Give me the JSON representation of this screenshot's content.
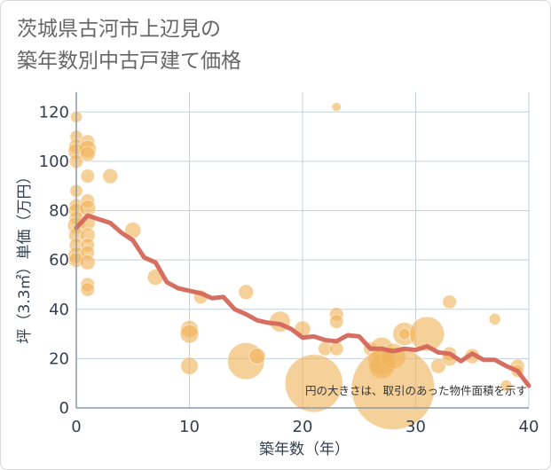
{
  "chart_data": {
    "type": "scatter",
    "title": "茨城県古河市上辺見の\n築年数別中古戸建て価格",
    "xlabel": "築年数（年）",
    "ylabel": "坪（3.3㎡）単価（万円）",
    "xlim": [
      0,
      40
    ],
    "ylim": [
      0,
      128
    ],
    "xticks": [
      "0",
      "10",
      "20",
      "30",
      "40"
    ],
    "yticks": [
      "0",
      "20",
      "40",
      "60",
      "80",
      "100",
      "120"
    ],
    "grid": true,
    "note": "円の大きさは、取引のあった物件面積を示す",
    "colors": {
      "bubble": "#f0b35a",
      "line": "#d4665a",
      "grid": "#c5d0dc",
      "axis": "#8899aa"
    },
    "points": [
      {
        "x": 0,
        "y": 118,
        "s": 1
      },
      {
        "x": 0,
        "y": 110,
        "s": 1.1
      },
      {
        "x": 0,
        "y": 106,
        "s": 1.3
      },
      {
        "x": 0,
        "y": 104,
        "s": 1.4
      },
      {
        "x": 0,
        "y": 100,
        "s": 1.2
      },
      {
        "x": 0,
        "y": 88,
        "s": 1.1
      },
      {
        "x": 0,
        "y": 82,
        "s": 1.2
      },
      {
        "x": 0,
        "y": 80,
        "s": 1.3
      },
      {
        "x": 0,
        "y": 77,
        "s": 1.2
      },
      {
        "x": 0,
        "y": 74,
        "s": 1.5
      },
      {
        "x": 0,
        "y": 70,
        "s": 1.3
      },
      {
        "x": 0,
        "y": 66,
        "s": 1.2
      },
      {
        "x": 0,
        "y": 62,
        "s": 1.4
      },
      {
        "x": 0,
        "y": 60,
        "s": 1.3
      },
      {
        "x": 1,
        "y": 108,
        "s": 1.2
      },
      {
        "x": 1,
        "y": 105,
        "s": 1.5
      },
      {
        "x": 1,
        "y": 103,
        "s": 1.3
      },
      {
        "x": 1,
        "y": 94,
        "s": 1.2
      },
      {
        "x": 1,
        "y": 84,
        "s": 1.2
      },
      {
        "x": 1,
        "y": 81,
        "s": 1.4
      },
      {
        "x": 1,
        "y": 75,
        "s": 1.3
      },
      {
        "x": 1,
        "y": 70,
        "s": 1.3
      },
      {
        "x": 1,
        "y": 66,
        "s": 1.2
      },
      {
        "x": 1,
        "y": 63,
        "s": 1.2
      },
      {
        "x": 1,
        "y": 59,
        "s": 1.3
      },
      {
        "x": 1,
        "y": 50,
        "s": 1.2
      },
      {
        "x": 1,
        "y": 48,
        "s": 1.2
      },
      {
        "x": 3,
        "y": 94,
        "s": 1.3
      },
      {
        "x": 5,
        "y": 72,
        "s": 1.4
      },
      {
        "x": 7,
        "y": 53,
        "s": 1.4
      },
      {
        "x": 10,
        "y": 32,
        "s": 1.5
      },
      {
        "x": 10,
        "y": 30,
        "s": 1.6
      },
      {
        "x": 10,
        "y": 17,
        "s": 1.5
      },
      {
        "x": 11,
        "y": 45,
        "s": 1.2
      },
      {
        "x": 15,
        "y": 47,
        "s": 1.3
      },
      {
        "x": 15,
        "y": 19,
        "s": 3.2
      },
      {
        "x": 16,
        "y": 21,
        "s": 1.4
      },
      {
        "x": 18,
        "y": 35,
        "s": 1.8
      },
      {
        "x": 20,
        "y": 32,
        "s": 1.4
      },
      {
        "x": 21,
        "y": 10,
        "s": 5.0
      },
      {
        "x": 23,
        "y": 122,
        "s": 0.8
      },
      {
        "x": 23,
        "y": 38,
        "s": 1.2
      },
      {
        "x": 23,
        "y": 35,
        "s": 1.2
      },
      {
        "x": 22,
        "y": 24,
        "s": 1.2
      },
      {
        "x": 23,
        "y": 24,
        "s": 1.2
      },
      {
        "x": 26,
        "y": 24,
        "s": 1.2
      },
      {
        "x": 27,
        "y": 24,
        "s": 2.0
      },
      {
        "x": 27,
        "y": 19,
        "s": 2.4
      },
      {
        "x": 27,
        "y": 17,
        "s": 2.2
      },
      {
        "x": 28,
        "y": 21,
        "s": 2.2
      },
      {
        "x": 28,
        "y": 8,
        "s": 7.2
      },
      {
        "x": 29,
        "y": 30,
        "s": 2.0
      },
      {
        "x": 29,
        "y": 30,
        "s": 1.0
      },
      {
        "x": 31,
        "y": 30,
        "s": 3.0
      },
      {
        "x": 32,
        "y": 17,
        "s": 1.3
      },
      {
        "x": 33,
        "y": 43,
        "s": 1.2
      },
      {
        "x": 33,
        "y": 22,
        "s": 1.2
      },
      {
        "x": 33,
        "y": 20,
        "s": 1.3
      },
      {
        "x": 35,
        "y": 21,
        "s": 1.3
      },
      {
        "x": 37,
        "y": 36,
        "s": 1.0
      },
      {
        "x": 38,
        "y": 9,
        "s": 1.0
      },
      {
        "x": 39,
        "y": 17,
        "s": 1.2
      },
      {
        "x": 39,
        "y": 15,
        "s": 1.1
      }
    ],
    "trend": {
      "x": [
        0,
        1,
        2,
        3,
        4,
        5,
        6,
        7,
        8,
        9,
        10,
        11,
        12,
        13,
        14,
        15,
        16,
        17,
        18,
        19,
        20,
        21,
        22,
        23,
        24,
        25,
        26,
        27,
        28,
        29,
        30,
        31,
        32,
        33,
        34,
        35,
        36,
        37,
        38,
        39,
        40
      ],
      "y": [
        73,
        78,
        76.5,
        75,
        71,
        68,
        61,
        59,
        51,
        48.5,
        47.5,
        46.5,
        44.5,
        45,
        40,
        38,
        35.5,
        34.5,
        34,
        32,
        28.5,
        29,
        27.5,
        27,
        29.5,
        29,
        24,
        24,
        23,
        24,
        23.5,
        25,
        22.5,
        22,
        19,
        22,
        19.5,
        19.5,
        17,
        15,
        9
      ]
    }
  }
}
